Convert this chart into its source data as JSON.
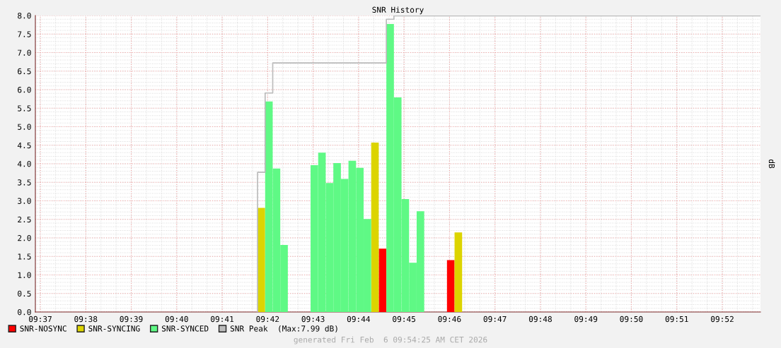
{
  "chart_data": {
    "type": "bar",
    "title": "SNR History",
    "ylabel": "dB",
    "xlim": [
      9.61485,
      9.88067
    ],
    "xticks": [
      {
        "value": 9.61667,
        "label": "09:37"
      },
      {
        "value": 9.63333,
        "label": "09:38"
      },
      {
        "value": 9.65,
        "label": "09:39"
      },
      {
        "value": 9.66667,
        "label": "09:40"
      },
      {
        "value": 9.68333,
        "label": "09:41"
      },
      {
        "value": 9.7,
        "label": "09:42"
      },
      {
        "value": 9.71667,
        "label": "09:43"
      },
      {
        "value": 9.73333,
        "label": "09:44"
      },
      {
        "value": 9.75,
        "label": "09:45"
      },
      {
        "value": 9.76667,
        "label": "09:46"
      },
      {
        "value": 9.78333,
        "label": "09:47"
      },
      {
        "value": 9.8,
        "label": "09:48"
      },
      {
        "value": 9.81667,
        "label": "09:49"
      },
      {
        "value": 9.83333,
        "label": "09:50"
      },
      {
        "value": 9.85,
        "label": "09:51"
      },
      {
        "value": 9.86667,
        "label": "09:52"
      }
    ],
    "ylim": [
      0,
      8
    ],
    "yticks": [
      {
        "value": 0,
        "label": "0.0"
      },
      {
        "value": 0.5,
        "label": "0.5"
      },
      {
        "value": 1,
        "label": "1.0"
      },
      {
        "value": 1.5,
        "label": "1.5"
      },
      {
        "value": 2,
        "label": "2.0"
      },
      {
        "value": 2.5,
        "label": "2.5"
      },
      {
        "value": 3,
        "label": "3.0"
      },
      {
        "value": 3.5,
        "label": "3.5"
      },
      {
        "value": 4,
        "label": "4.0"
      },
      {
        "value": 4.5,
        "label": "4.5"
      },
      {
        "value": 5,
        "label": "5.0"
      },
      {
        "value": 5.5,
        "label": "5.5"
      },
      {
        "value": 6,
        "label": "6.0"
      },
      {
        "value": 6.5,
        "label": "6.5"
      },
      {
        "value": 7,
        "label": "7.0"
      },
      {
        "value": 7.5,
        "label": "7.5"
      },
      {
        "value": 8,
        "label": "8.0"
      }
    ],
    "grid": true,
    "legend": "bottom",
    "series": [
      {
        "name": "SNR-NOSYNC",
        "color": "#ff0000",
        "x": [
          9.74074,
          9.76574
        ],
        "values": [
          1.71,
          1.4
        ]
      },
      {
        "name": "SNR-SYNCING",
        "color": "#dcd400",
        "x": [
          9.6963,
          9.73796,
          9.76852
        ],
        "values": [
          2.81,
          4.57,
          2.15
        ]
      },
      {
        "name": "SNR-SYNCED",
        "color": "#5ff985",
        "x": [
          9.69908,
          9.70186,
          9.70463,
          9.71574,
          9.71852,
          9.7213,
          9.72408,
          9.72685,
          9.72963,
          9.73241,
          9.73519,
          9.74352,
          9.7463,
          9.74908,
          9.75185,
          9.75463
        ],
        "values": [
          5.68,
          3.87,
          1.81,
          3.96,
          4.3,
          3.48,
          4.02,
          3.59,
          4.08,
          3.89,
          2.51,
          7.77,
          5.79,
          3.05,
          1.33,
          2.72
        ]
      },
      {
        "name": "SNR Peak  (Max:7.99 dB)",
        "type": "step",
        "color": "#bbbbbb",
        "x": [
          9.6963,
          9.6963,
          9.69908,
          9.70186,
          9.74352,
          9.7463,
          9.88067
        ],
        "values": [
          0,
          3.77,
          5.91,
          6.72,
          7.9,
          7.99,
          7.99
        ]
      }
    ],
    "annotations": [
      "generated Fri Feb  6 09:54:25 AM CET 2026"
    ]
  }
}
